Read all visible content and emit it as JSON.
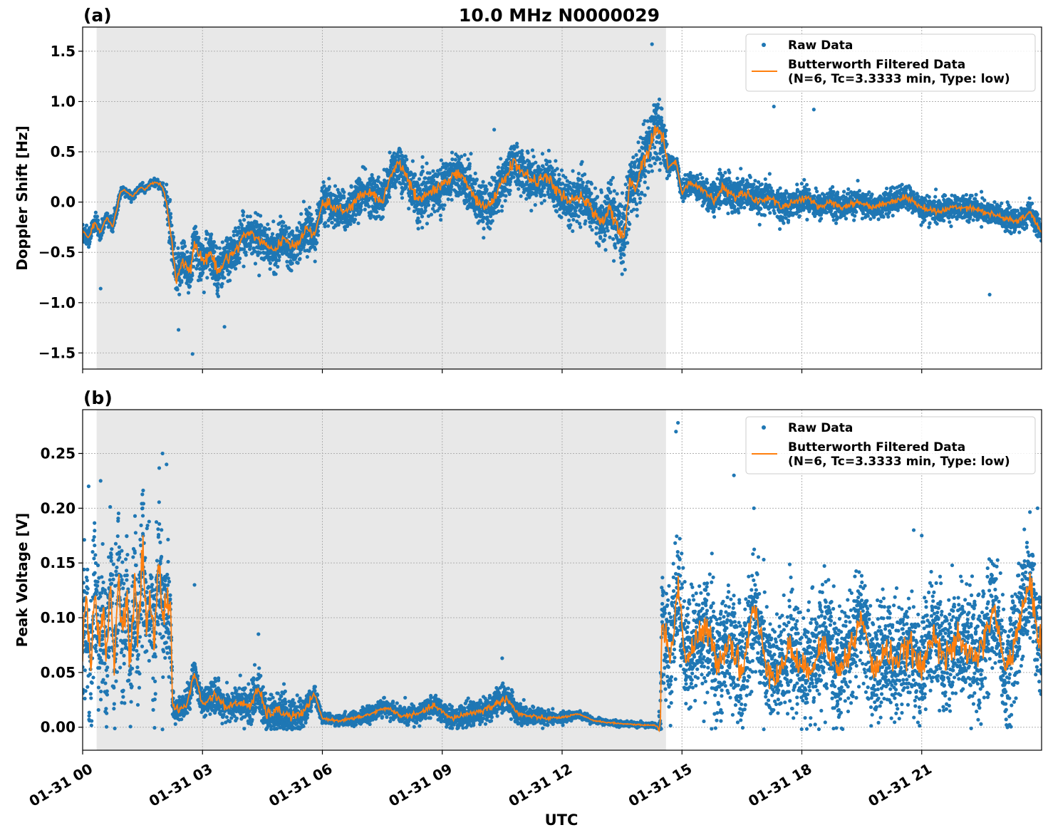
{
  "figure": {
    "title": "10.0 MHz N0000029",
    "xlabel": "UTC"
  },
  "chart_data": [
    {
      "type": "scatter",
      "panel_label": "(a)",
      "ylabel": "Doppler Shift [Hz]",
      "ylim": [
        -1.66,
        1.74
      ],
      "yticks": [
        1.5,
        1.0,
        0.5,
        0.0,
        -0.5,
        -1.0,
        -1.5
      ],
      "ytick_labels": [
        "1.5",
        "1.0",
        "0.5",
        "0.0",
        "−0.5",
        "−1.0",
        "−1.5"
      ],
      "xlim_hours": [
        0,
        24
      ],
      "xticks_hours": [
        0,
        3,
        6,
        9,
        12,
        15,
        18,
        21
      ],
      "xtick_labels": [
        "01-31 00",
        "01-31 03",
        "01-31 06",
        "01-31 09",
        "01-31 12",
        "01-31 15",
        "01-31 18",
        "01-31 21"
      ],
      "shaded_region_hours": [
        0.35,
        14.6
      ],
      "grid": true,
      "legend_placement": "upper-right",
      "legend": [
        "Raw Data",
        "Butterworth Filtered Data",
        "(N=6, Tc=3.3333 min, Type: low)"
      ],
      "series": [
        {
          "name": "Raw Data",
          "color": "#1f77b4",
          "kind": "scatter",
          "spread_hours": [
            0,
            0.5,
            1.0,
            2.0,
            2.2,
            3.0,
            4.0,
            5.0,
            6.0,
            8.0,
            10.0,
            12.0,
            13.0,
            13.5,
            14.5,
            14.7,
            16.0,
            18.0,
            20.0,
            22.0,
            24.0
          ],
          "spread_values": [
            0.12,
            0.08,
            0.04,
            0.04,
            0.25,
            0.25,
            0.22,
            0.2,
            0.2,
            0.24,
            0.24,
            0.24,
            0.25,
            0.34,
            0.36,
            0.07,
            0.2,
            0.14,
            0.13,
            0.13,
            0.12
          ],
          "outliers": [
            [
              0.45,
              -0.86
            ],
            [
              2.4,
              -1.27
            ],
            [
              2.75,
              -1.51
            ],
            [
              3.55,
              -1.24
            ],
            [
              14.25,
              1.57
            ],
            [
              17.3,
              0.95
            ],
            [
              18.3,
              0.92
            ],
            [
              22.7,
              -0.92
            ],
            [
              10.3,
              0.72
            ]
          ]
        },
        {
          "name": "Butterworth Filtered Data",
          "color": "#ff7f0e",
          "kind": "line",
          "x_hours": [
            0,
            0.15,
            0.3,
            0.45,
            0.6,
            0.75,
            0.95,
            1.05,
            1.25,
            1.45,
            1.55,
            1.7,
            1.85,
            2.0,
            2.1,
            2.2,
            2.35,
            2.5,
            2.7,
            2.8,
            3.0,
            3.2,
            3.4,
            3.6,
            3.8,
            4.0,
            4.2,
            4.5,
            4.8,
            5.0,
            5.2,
            5.4,
            5.6,
            5.8,
            6.0,
            6.3,
            6.6,
            6.9,
            7.2,
            7.5,
            7.7,
            7.9,
            8.1,
            8.4,
            8.7,
            9.0,
            9.3,
            9.6,
            9.9,
            10.2,
            10.5,
            10.8,
            11.0,
            11.3,
            11.6,
            11.9,
            12.2,
            12.5,
            12.8,
            13.0,
            13.2,
            13.4,
            13.55,
            13.7,
            13.85,
            14.0,
            14.15,
            14.3,
            14.4,
            14.55,
            14.65,
            14.85,
            15.0,
            15.2,
            15.4,
            15.6,
            15.8,
            16.0,
            16.3,
            16.6,
            16.9,
            17.2,
            17.5,
            17.8,
            18.1,
            18.4,
            18.7,
            19.0,
            19.4,
            19.8,
            20.2,
            20.6,
            21.0,
            21.4,
            21.8,
            22.2,
            22.6,
            23.0,
            23.4,
            23.7,
            24.0
          ],
          "y": [
            -0.3,
            -0.35,
            -0.2,
            -0.3,
            -0.15,
            -0.25,
            0.1,
            0.12,
            0.05,
            0.15,
            0.12,
            0.18,
            0.2,
            0.15,
            0.0,
            -0.3,
            -0.8,
            -0.55,
            -0.7,
            -0.4,
            -0.6,
            -0.5,
            -0.7,
            -0.55,
            -0.5,
            -0.35,
            -0.3,
            -0.4,
            -0.5,
            -0.35,
            -0.45,
            -0.4,
            -0.25,
            -0.35,
            0.0,
            -0.05,
            -0.1,
            0.05,
            0.1,
            0.0,
            0.25,
            0.4,
            0.25,
            0.0,
            0.1,
            0.15,
            0.3,
            0.2,
            0.0,
            -0.05,
            0.2,
            0.4,
            0.3,
            0.2,
            0.25,
            0.1,
            0.0,
            0.05,
            -0.1,
            -0.2,
            -0.05,
            -0.3,
            -0.35,
            0.2,
            0.15,
            0.4,
            0.5,
            0.7,
            0.75,
            0.6,
            0.35,
            0.4,
            0.1,
            0.2,
            0.15,
            0.1,
            0.0,
            0.15,
            0.05,
            0.1,
            0.0,
            0.05,
            -0.05,
            0.0,
            0.05,
            -0.05,
            0.0,
            -0.05,
            0.0,
            -0.05,
            0.0,
            0.05,
            -0.05,
            -0.1,
            -0.05,
            -0.05,
            -0.1,
            -0.15,
            -0.2,
            -0.1,
            -0.3
          ]
        }
      ]
    },
    {
      "type": "scatter",
      "panel_label": "(b)",
      "ylabel": "Peak Voltage [V]",
      "ylim": [
        -0.021,
        0.29
      ],
      "yticks": [
        0.25,
        0.2,
        0.15,
        0.1,
        0.05,
        0.0
      ],
      "ytick_labels": [
        "0.25",
        "0.20",
        "0.15",
        "0.10",
        "0.05",
        "0.00"
      ],
      "xlim_hours": [
        0,
        24
      ],
      "xticks_hours": [
        0,
        3,
        6,
        9,
        12,
        15,
        18,
        21
      ],
      "xtick_labels": [
        "01-31 00",
        "01-31 03",
        "01-31 06",
        "01-31 09",
        "01-31 12",
        "01-31 15",
        "01-31 18",
        "01-31 21"
      ],
      "shaded_region_hours": [
        0.35,
        14.6
      ],
      "grid": true,
      "legend_placement": "upper-right",
      "legend": [
        "Raw Data",
        "Butterworth Filtered Data",
        "(N=6, Tc=3.3333 min, Type: low)"
      ],
      "series": [
        {
          "name": "Raw Data",
          "color": "#1f77b4",
          "kind": "scatter",
          "spread_hours": [
            0,
            2.2,
            2.25,
            3.0,
            4.0,
            4.5,
            5.5,
            6.0,
            7.0,
            9.0,
            10.5,
            11.5,
            12.5,
            14.4,
            14.45,
            15.0,
            18.0,
            21.0,
            24.0
          ],
          "spread_values": [
            0.07,
            0.07,
            0.012,
            0.014,
            0.016,
            0.022,
            0.016,
            0.004,
            0.007,
            0.01,
            0.014,
            0.007,
            0.003,
            0.002,
            0.055,
            0.06,
            0.055,
            0.055,
            0.06
          ],
          "outliers": [
            [
              2.0,
              0.25
            ],
            [
              2.1,
              0.24
            ],
            [
              1.5,
              0.2
            ],
            [
              0.15,
              0.22
            ],
            [
              0.45,
              0.225
            ],
            [
              2.8,
              0.13
            ],
            [
              4.4,
              0.085
            ],
            [
              10.5,
              0.063
            ],
            [
              14.9,
              0.278
            ],
            [
              14.85,
              0.27
            ],
            [
              16.3,
              0.23
            ],
            [
              16.8,
              0.2
            ],
            [
              20.8,
              0.18
            ],
            [
              23.9,
              0.2
            ],
            [
              21.0,
              0.175
            ]
          ]
        },
        {
          "name": "Butterworth Filtered Data",
          "color": "#ff7f0e",
          "kind": "line",
          "x_hours": [
            0,
            0.1,
            0.2,
            0.3,
            0.4,
            0.5,
            0.6,
            0.7,
            0.8,
            0.9,
            1.0,
            1.1,
            1.2,
            1.3,
            1.4,
            1.5,
            1.6,
            1.7,
            1.8,
            1.9,
            2.0,
            2.1,
            2.2,
            2.25,
            2.4,
            2.6,
            2.8,
            3.0,
            3.3,
            3.6,
            3.9,
            4.2,
            4.4,
            4.6,
            4.9,
            5.2,
            5.5,
            5.8,
            6.0,
            6.4,
            6.8,
            7.2,
            7.6,
            8.0,
            8.4,
            8.8,
            9.2,
            9.6,
            10.0,
            10.3,
            10.6,
            10.9,
            11.2,
            11.6,
            12.0,
            12.4,
            12.8,
            13.2,
            13.6,
            14.0,
            14.3,
            14.4,
            14.45,
            14.5,
            14.7,
            14.9,
            15.1,
            15.3,
            15.6,
            15.9,
            16.2,
            16.5,
            16.8,
            17.1,
            17.4,
            17.7,
            18.0,
            18.3,
            18.6,
            18.9,
            19.2,
            19.5,
            19.8,
            20.1,
            20.4,
            20.7,
            21.0,
            21.3,
            21.6,
            21.9,
            22.2,
            22.5,
            22.8,
            23.1,
            23.4,
            23.7,
            24.0
          ],
          "y": [
            0.08,
            0.115,
            0.045,
            0.14,
            0.07,
            0.11,
            0.06,
            0.13,
            0.05,
            0.145,
            0.085,
            0.12,
            0.06,
            0.135,
            0.075,
            0.17,
            0.09,
            0.12,
            0.07,
            0.16,
            0.1,
            0.12,
            0.11,
            0.02,
            0.015,
            0.02,
            0.05,
            0.02,
            0.03,
            0.018,
            0.022,
            0.02,
            0.035,
            0.012,
            0.015,
            0.01,
            0.012,
            0.03,
            0.008,
            0.006,
            0.008,
            0.012,
            0.018,
            0.01,
            0.012,
            0.02,
            0.008,
            0.012,
            0.015,
            0.02,
            0.027,
            0.012,
            0.01,
            0.008,
            0.009,
            0.012,
            0.006,
            0.004,
            0.003,
            0.002,
            0.002,
            0.0,
            -0.007,
            0.1,
            0.06,
            0.13,
            0.06,
            0.075,
            0.09,
            0.06,
            0.08,
            0.05,
            0.11,
            0.06,
            0.045,
            0.075,
            0.05,
            0.06,
            0.08,
            0.05,
            0.07,
            0.1,
            0.05,
            0.07,
            0.06,
            0.075,
            0.05,
            0.09,
            0.06,
            0.08,
            0.065,
            0.07,
            0.11,
            0.05,
            0.09,
            0.13,
            0.07
          ]
        }
      ]
    }
  ]
}
